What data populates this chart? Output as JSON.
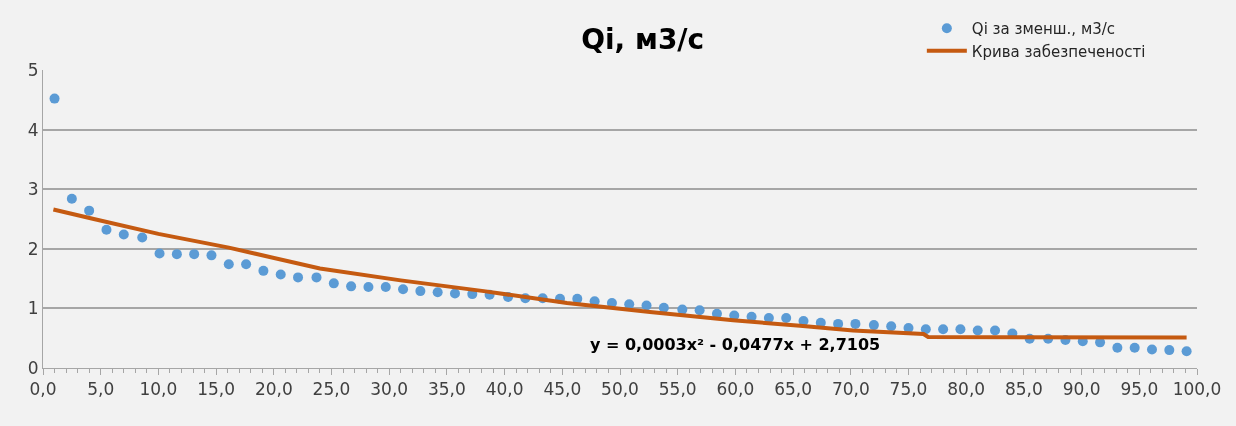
{
  "chart_data": {
    "type": "scatter",
    "title": "Qi, м3/с",
    "x": [
      1.0,
      2.5,
      4.0,
      5.5,
      7.0,
      8.6,
      10.1,
      11.6,
      13.1,
      14.6,
      16.1,
      17.6,
      19.1,
      20.6,
      22.1,
      23.7,
      25.2,
      26.7,
      28.2,
      29.7,
      31.2,
      32.7,
      34.2,
      35.7,
      37.2,
      38.7,
      40.3,
      41.8,
      43.3,
      44.8,
      46.3,
      47.8,
      49.3,
      50.8,
      52.3,
      53.8,
      55.4,
      56.9,
      58.4,
      59.9,
      61.4,
      62.9,
      64.4,
      65.9,
      67.4,
      68.9,
      70.4,
      72.0,
      73.5,
      75.0,
      76.5,
      78.0,
      79.5,
      81.0,
      82.5,
      84.0,
      85.5,
      87.1,
      88.6,
      90.1,
      91.6,
      93.1,
      94.6,
      96.1,
      97.6,
      99.1
    ],
    "series": [
      {
        "name": "Qi за зменш., м3/с",
        "marker": "circle",
        "color": "#5b9bd5",
        "values": [
          4.52,
          2.84,
          2.64,
          2.32,
          2.24,
          2.19,
          1.92,
          1.91,
          1.91,
          1.89,
          1.74,
          1.74,
          1.63,
          1.57,
          1.52,
          1.52,
          1.42,
          1.37,
          1.36,
          1.36,
          1.32,
          1.29,
          1.27,
          1.25,
          1.24,
          1.23,
          1.19,
          1.17,
          1.17,
          1.16,
          1.16,
          1.12,
          1.09,
          1.07,
          1.05,
          1.01,
          0.98,
          0.97,
          0.91,
          0.88,
          0.86,
          0.84,
          0.84,
          0.79,
          0.76,
          0.74,
          0.74,
          0.72,
          0.7,
          0.67,
          0.65,
          0.65,
          0.65,
          0.63,
          0.63,
          0.58,
          0.49,
          0.49,
          0.47,
          0.45,
          0.43,
          0.34,
          0.34,
          0.31,
          0.3,
          0.28
        ]
      },
      {
        "name": "Крива забезпеченості",
        "type": "line",
        "marker": "none",
        "color": "#c55a11",
        "x": [
          0.9,
          4.4,
          10.0,
          16.1,
          24.0,
          31.0,
          38.2,
          45.4,
          52.6,
          59.8,
          65.6,
          70.2,
          76.3,
          76.7,
          99.1
        ],
        "values": [
          2.66,
          2.5,
          2.25,
          2.02,
          1.67,
          1.47,
          1.29,
          1.09,
          0.94,
          0.8,
          0.71,
          0.63,
          0.57,
          0.52,
          0.51
        ]
      }
    ],
    "annotations": [
      "y = 0,0003x² - 0,0477x + 2,7105"
    ],
    "xlim": [
      0,
      100
    ],
    "xticks": [
      {
        "value": 0,
        "label": "0,0"
      },
      {
        "value": 5,
        "label": "5,0"
      },
      {
        "value": 10,
        "label": "10,0"
      },
      {
        "value": 15,
        "label": "15,0"
      },
      {
        "value": 20,
        "label": "20,0"
      },
      {
        "value": 25,
        "label": "25,0"
      },
      {
        "value": 30,
        "label": "30,0"
      },
      {
        "value": 35,
        "label": "35,0"
      },
      {
        "value": 40,
        "label": "40,0"
      },
      {
        "value": 45,
        "label": "45,0"
      },
      {
        "value": 50,
        "label": "50,0"
      },
      {
        "value": 55,
        "label": "55,0"
      },
      {
        "value": 60,
        "label": "60,0"
      },
      {
        "value": 65,
        "label": "65,0"
      },
      {
        "value": 70,
        "label": "70,0"
      },
      {
        "value": 75,
        "label": "75,0"
      },
      {
        "value": 80,
        "label": "80,0"
      },
      {
        "value": 85,
        "label": "85,0"
      },
      {
        "value": 90,
        "label": "90,0"
      },
      {
        "value": 95,
        "label": "95,0"
      },
      {
        "value": 100,
        "label": "100,0"
      }
    ],
    "ylim": [
      0,
      5
    ],
    "yticks": [
      0,
      1,
      2,
      3,
      4,
      5
    ],
    "grid": "y",
    "legend": "top right"
  }
}
